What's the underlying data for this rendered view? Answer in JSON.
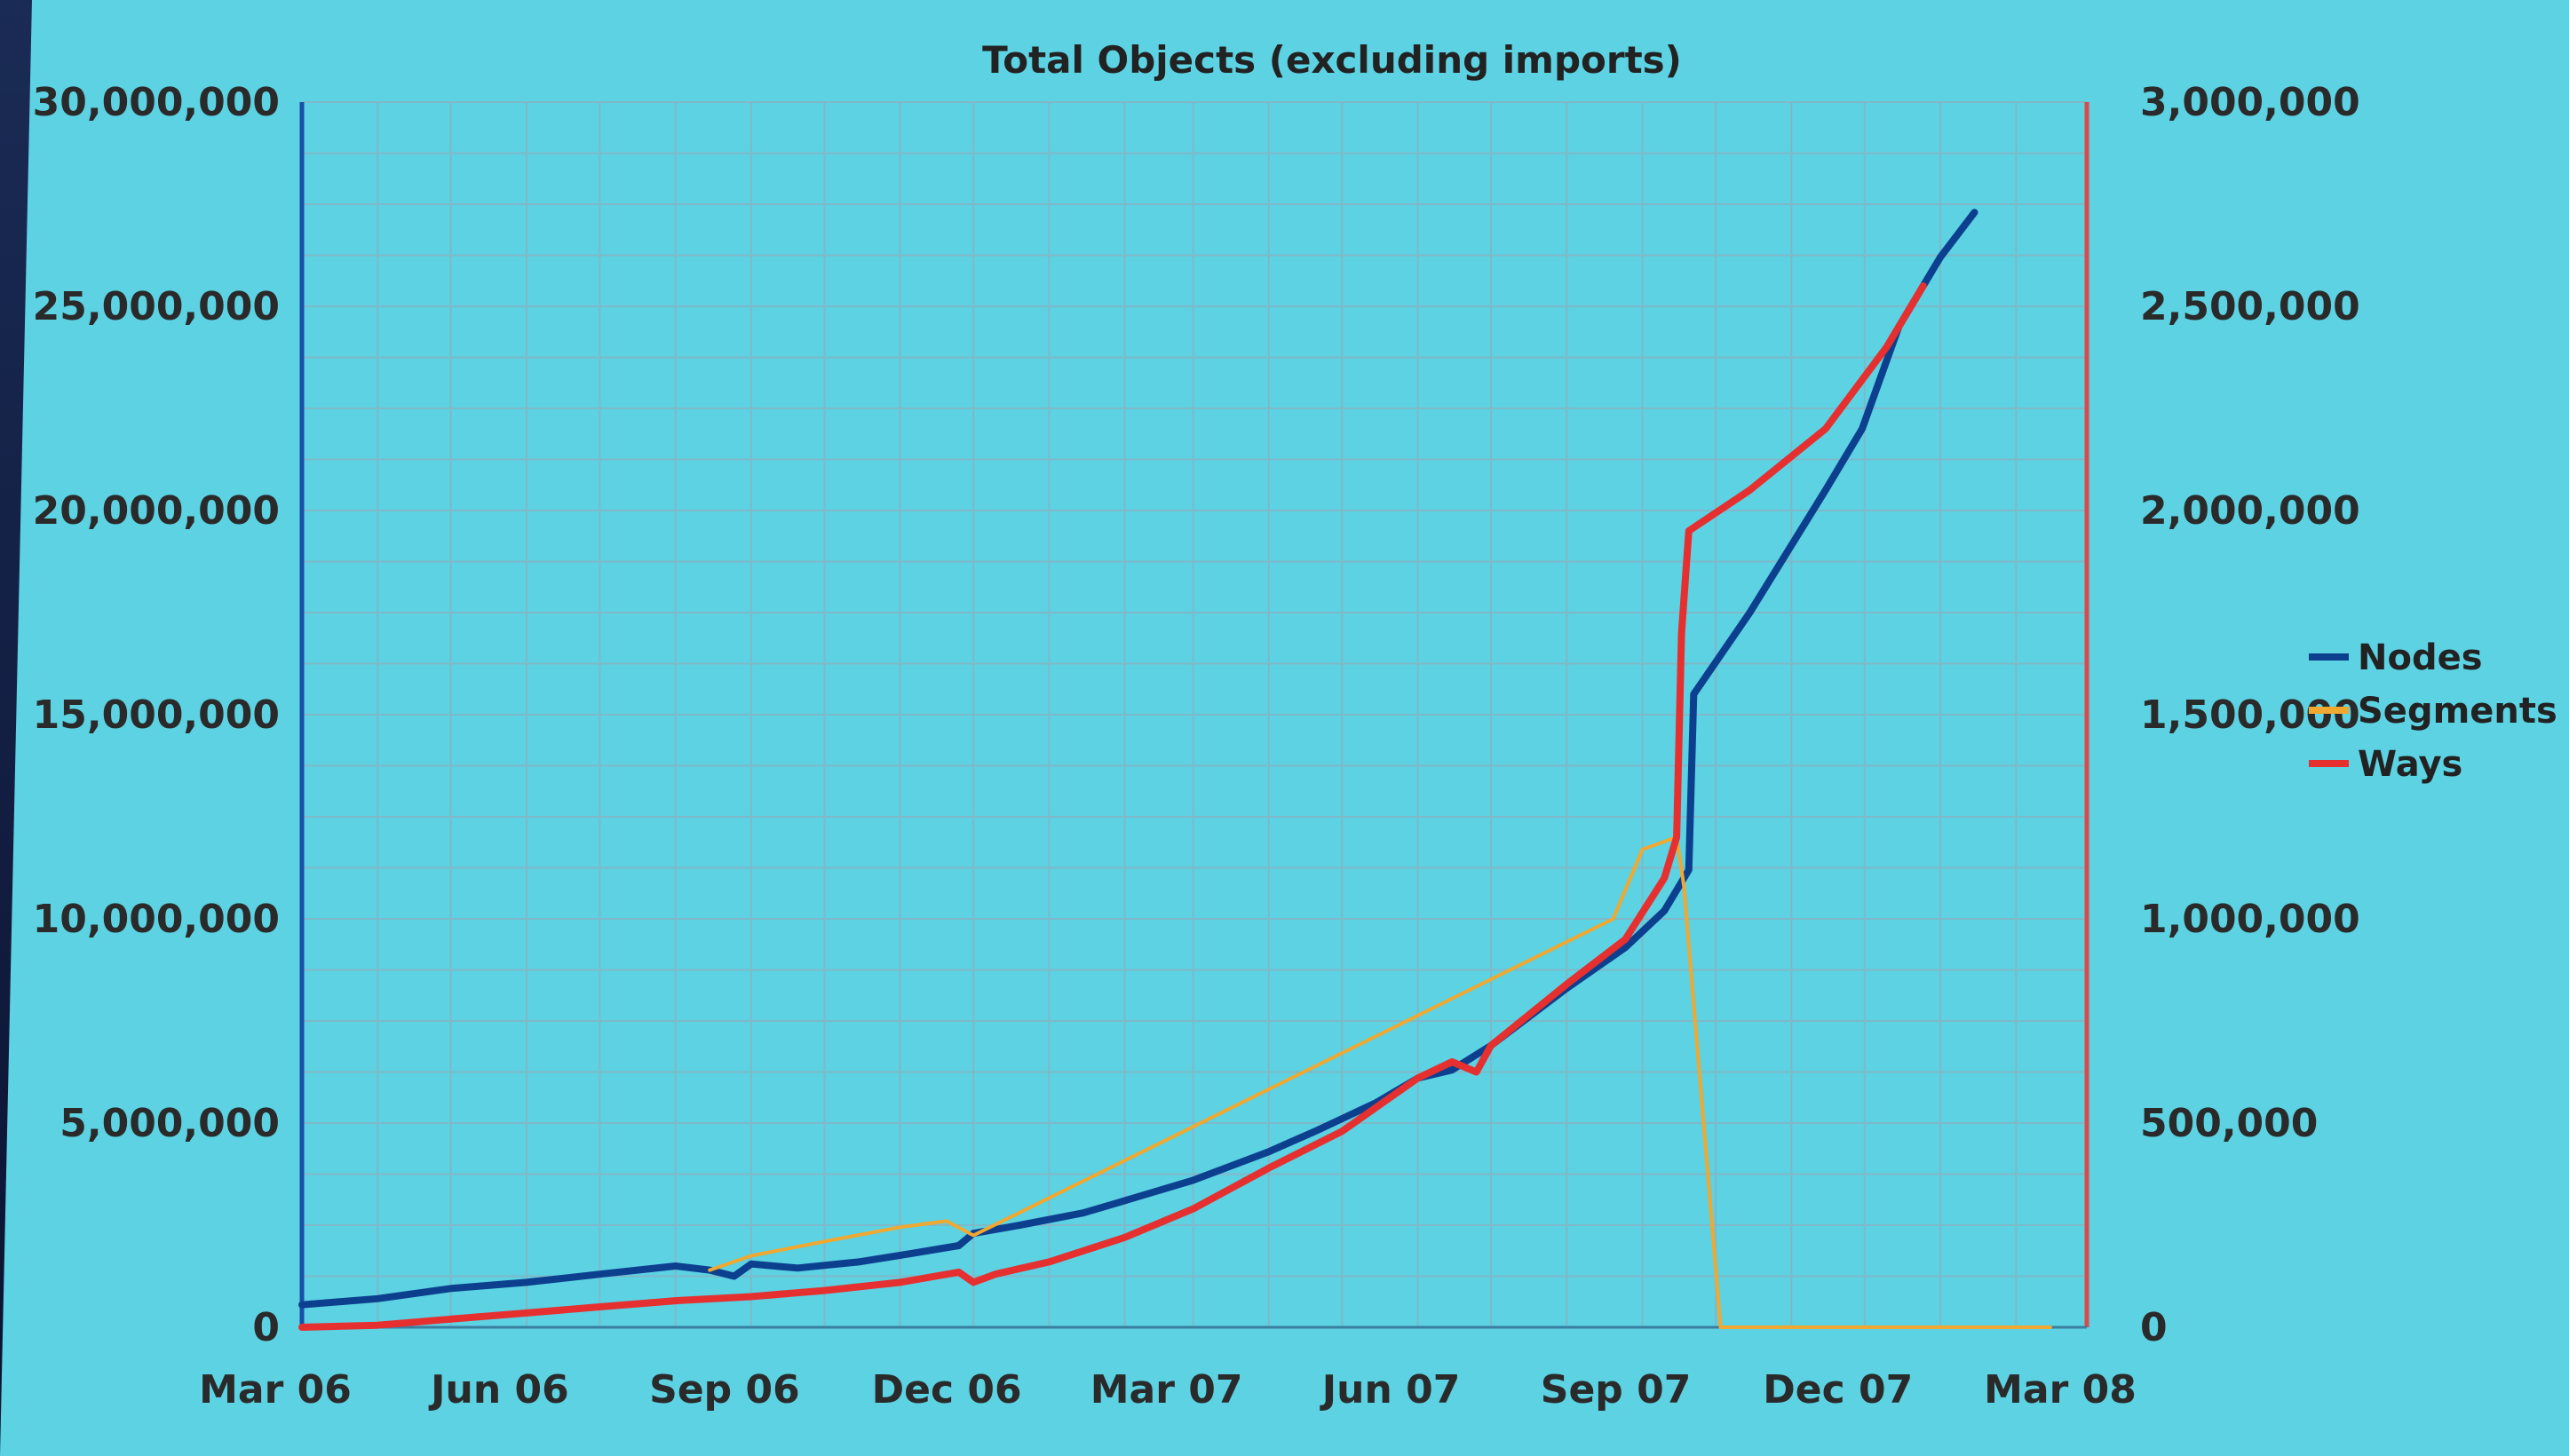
{
  "chart_data": {
    "type": "line",
    "title": "Total Objects (excluding imports)",
    "x_tick_labels": [
      "Mar 06",
      "Jun 06",
      "Sep 06",
      "Dec 06",
      "Mar 07",
      "Jun 07",
      "Sep 07",
      "Dec 07",
      "Mar 08"
    ],
    "y_left": {
      "ylim": [
        0,
        30000000
      ],
      "ticks": [
        0,
        5000000,
        10000000,
        15000000,
        20000000,
        25000000,
        30000000
      ],
      "tick_labels": [
        "0",
        "5,000,000",
        "10,000,000",
        "15,000,000",
        "20,000,000",
        "25,000,000",
        "30,000,000"
      ]
    },
    "y_right": {
      "ylim": [
        0,
        3000000
      ],
      "ticks": [
        0,
        500000,
        1000000,
        1500000,
        2000000,
        2500000,
        3000000
      ],
      "tick_labels": [
        "0",
        "500,000",
        "1,000,000",
        "1,500,000",
        "2,000,000",
        "2,500,000",
        "3,000,000"
      ]
    },
    "grid": true,
    "legend_position": "right",
    "series": [
      {
        "name": "Nodes",
        "axis": "left",
        "color": "#0d3f8f",
        "points": [
          [
            "2006-03-01",
            550000
          ],
          [
            "2006-04-01",
            700000
          ],
          [
            "2006-05-01",
            950000
          ],
          [
            "2006-06-01",
            1100000
          ],
          [
            "2006-07-01",
            1300000
          ],
          [
            "2006-08-01",
            1500000
          ],
          [
            "2006-08-15",
            1400000
          ],
          [
            "2006-08-25",
            1250000
          ],
          [
            "2006-09-01",
            1550000
          ],
          [
            "2006-09-20",
            1450000
          ],
          [
            "2006-10-15",
            1600000
          ],
          [
            "2006-11-05",
            1800000
          ],
          [
            "2006-11-25",
            2000000
          ],
          [
            "2006-12-01",
            2300000
          ],
          [
            "2006-12-20",
            2500000
          ],
          [
            "2007-01-15",
            2800000
          ],
          [
            "2007-02-01",
            3100000
          ],
          [
            "2007-03-01",
            3600000
          ],
          [
            "2007-04-01",
            4300000
          ],
          [
            "2007-04-20",
            4800000
          ],
          [
            "2007-05-15",
            5500000
          ],
          [
            "2007-06-01",
            6100000
          ],
          [
            "2007-06-15",
            6300000
          ],
          [
            "2007-07-01",
            6900000
          ],
          [
            "2007-08-01",
            8300000
          ],
          [
            "2007-08-25",
            9300000
          ],
          [
            "2007-09-10",
            10200000
          ],
          [
            "2007-09-20",
            11200000
          ],
          [
            "2007-09-22",
            15500000
          ],
          [
            "2007-10-15",
            17500000
          ],
          [
            "2007-11-15",
            20500000
          ],
          [
            "2007-11-30",
            22000000
          ],
          [
            "2007-12-15",
            24500000
          ],
          [
            "2008-01-01",
            26200000
          ],
          [
            "2008-01-15",
            27300000
          ]
        ]
      },
      {
        "name": "Segments",
        "axis": "right",
        "color": "#f0a830",
        "points": [
          [
            "2006-08-15",
            140000
          ],
          [
            "2006-09-01",
            175000
          ],
          [
            "2006-10-01",
            210000
          ],
          [
            "2006-11-01",
            245000
          ],
          [
            "2006-11-20",
            260000
          ],
          [
            "2006-12-01",
            225000
          ],
          [
            "2007-08-20",
            1000000
          ],
          [
            "2007-09-01",
            1170000
          ],
          [
            "2007-09-15",
            1200000
          ],
          [
            "2007-09-18",
            1080000
          ],
          [
            "2007-10-03",
            0
          ],
          [
            "2008-02-15",
            0
          ]
        ]
      },
      {
        "name": "Ways",
        "axis": "right",
        "color": "#e63030",
        "points": [
          [
            "2006-03-01",
            0
          ],
          [
            "2006-04-01",
            5000
          ],
          [
            "2006-05-01",
            20000
          ],
          [
            "2006-06-01",
            35000
          ],
          [
            "2006-07-01",
            50000
          ],
          [
            "2006-08-01",
            65000
          ],
          [
            "2006-09-01",
            75000
          ],
          [
            "2006-10-01",
            90000
          ],
          [
            "2006-11-01",
            110000
          ],
          [
            "2006-11-25",
            135000
          ],
          [
            "2006-12-01",
            110000
          ],
          [
            "2006-12-10",
            130000
          ],
          [
            "2007-01-01",
            160000
          ],
          [
            "2007-02-01",
            220000
          ],
          [
            "2007-03-01",
            290000
          ],
          [
            "2007-04-01",
            390000
          ],
          [
            "2007-05-01",
            480000
          ],
          [
            "2007-06-01",
            610000
          ],
          [
            "2007-06-15",
            650000
          ],
          [
            "2007-06-25",
            625000
          ],
          [
            "2007-07-01",
            690000
          ],
          [
            "2007-08-01",
            840000
          ],
          [
            "2007-08-25",
            950000
          ],
          [
            "2007-09-10",
            1100000
          ],
          [
            "2007-09-15",
            1200000
          ],
          [
            "2007-09-17",
            1700000
          ],
          [
            "2007-09-20",
            1950000
          ],
          [
            "2007-10-15",
            2050000
          ],
          [
            "2007-11-15",
            2200000
          ],
          [
            "2007-12-10",
            2400000
          ],
          [
            "2007-12-25",
            2550000
          ]
        ]
      }
    ]
  }
}
